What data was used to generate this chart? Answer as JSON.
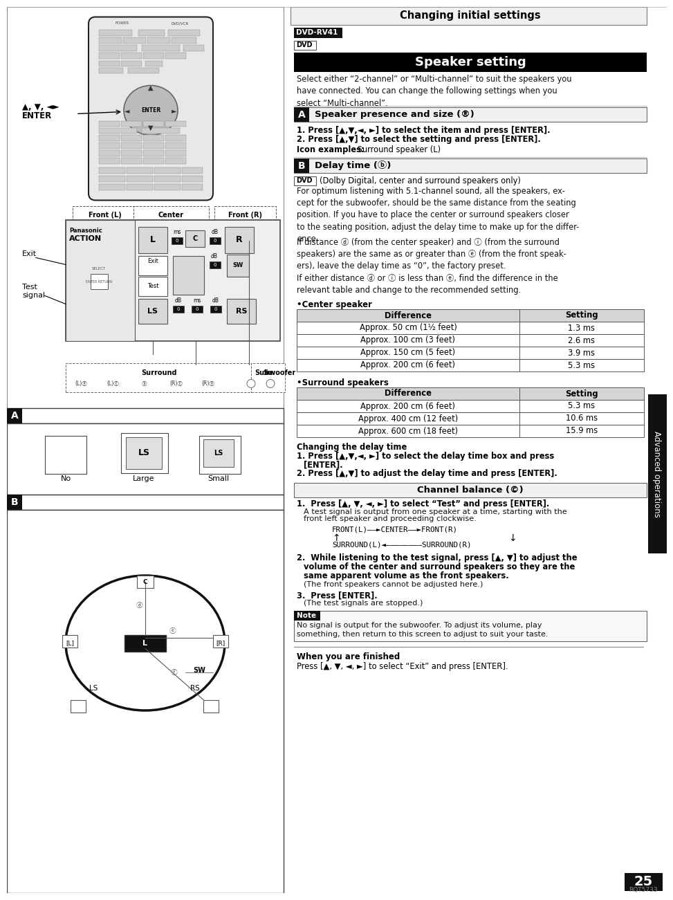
{
  "page_bg": "#ffffff",
  "top_header_text": "Changing initial settings",
  "model_label": "DVD-RV41",
  "dvd_label": "DVD",
  "speaker_setting_title": "Speaker setting",
  "intro_text": "Select either “2-channel” or “Multi-channel” to suit the speakers you\nhave connected. You can change the following settings when you\nselect “Multi-channel”.",
  "section_a_label": "A",
  "section_a_title": "Speaker presence and size (®)",
  "step1_a": "1. Press [▲,▼,◄, ►] to select the item and press [ENTER].",
  "step2_a": "2. Press [▲,▼] to select the setting and press [ENTER].",
  "icon_examples_bold": "Icon examples:",
  "icon_examples_normal": " Surround speaker (L)",
  "section_b_label": "B",
  "section_b_title": "Delay time (ⓑ)",
  "dvd_note_text": "(Dolby Digital, center and surround speakers only)",
  "delay_para1": "For optimum listening with 5.1-channel sound, all the speakers, ex-\ncept for the subwoofer, should be the same distance from the seating\nposition. If you have to place the center or surround speakers closer\nto the seating position, adjust the delay time to make up for the differ-\nence.",
  "delay_para2": "If distance ⓓ (from the center speaker) and ⓘ (from the surround\nspeakers) are the same as or greater than ⓔ (from the front speak-\ners), leave the delay time as “0”, the factory preset.",
  "delay_para3": "If either distance ⓓ or ⓘ is less than ⓔ, find the difference in the\nrelevant table and change to the recommended setting.",
  "center_speaker_header": "•Center speaker",
  "center_table_headers": [
    "Difference",
    "Setting"
  ],
  "center_table_rows": [
    [
      "Approx. 50 cm (1½ feet)",
      "1.3 ms"
    ],
    [
      "Approx. 100 cm (3 feet)",
      "2.6 ms"
    ],
    [
      "Approx. 150 cm (5 feet)",
      "3.9 ms"
    ],
    [
      "Approx. 200 cm (6 feet)",
      "5.3 ms"
    ]
  ],
  "surround_speaker_header": "•Surround speakers",
  "surround_table_headers": [
    "Difference",
    "Setting"
  ],
  "surround_table_rows": [
    [
      "Approx. 200 cm (6 feet)",
      "5.3 ms"
    ],
    [
      "Approx. 400 cm (12 feet)",
      "10.6 ms"
    ],
    [
      "Approx. 600 cm (18 feet)",
      "15.9 ms"
    ]
  ],
  "changing_delay_header": "Changing the delay time",
  "step1_b_line1": "1. Press [▲,▼,◄, ►] to select the delay time box and press",
  "step1_b_line2": "[ENTER].",
  "step2_b": "2. Press [▲,▼] to adjust the delay time and press [ENTER].",
  "channel_balance_title": "Channel balance (©)",
  "cb_step1": "1.  Press [▲, ▼, ◄, ►] to select “Test” and press [ENTER].",
  "cb_step1b_line1": "A test signal is output from one speaker at a time, starting with the",
  "cb_step1b_line2": "front left speaker and proceeding clockwise.",
  "cb_flow1": "FRONT(L)——►CENTER——►FRONT(R)",
  "cb_flow2": "SURROUND(L)◄————————SURROUND(R)",
  "cb_step2_line1": "2.  While listening to the test signal, press [▲, ▼] to adjust the",
  "cb_step2_line2": "volume of the center and surround speakers so they are the",
  "cb_step2_line3": "same apparent volume as the front speakers.",
  "cb_step2b": "(The front speakers cannot be adjusted here.)",
  "cb_step3": "3.  Press [ENTER].",
  "cb_step3b": "(The test signals are stopped.)",
  "note_label": "Note",
  "note_text": "No signal is output for the subwoofer. To adjust its volume, play\nsomething, then return to this screen to adjust to suit your taste.",
  "when_finished_header": "When you are finished",
  "when_finished_text": "Press [▲, ▼, ◄, ►] to select “Exit” and press [ENTER].",
  "page_number": "25",
  "page_code": "RQT5733",
  "sidebar_text": "Advanced operations"
}
